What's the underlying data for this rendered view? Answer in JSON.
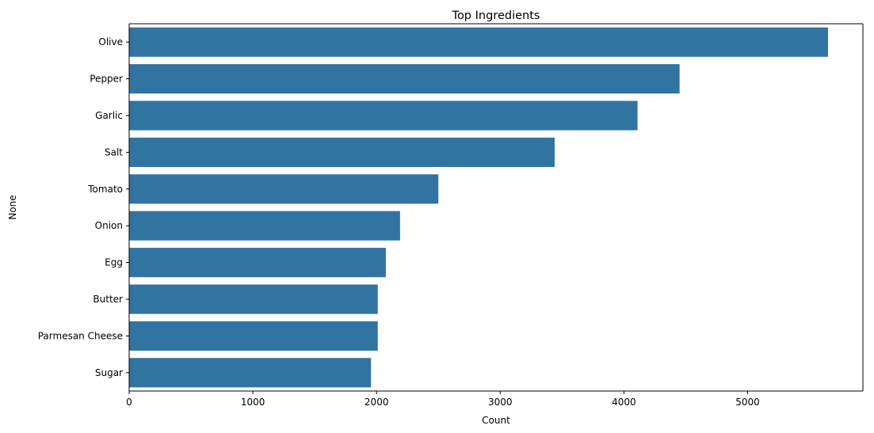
{
  "chart_data": {
    "type": "bar",
    "orientation": "horizontal",
    "title": "Top Ingredients",
    "xlabel": "Count",
    "ylabel": "None",
    "categories": [
      "Olive",
      "Pepper",
      "Garlic",
      "Salt",
      "Tomato",
      "Onion",
      "Egg",
      "Butter",
      "Parmesan Cheese",
      "Sugar"
    ],
    "values": [
      5650,
      4450,
      4110,
      3440,
      2500,
      2190,
      2075,
      2010,
      2010,
      1955
    ],
    "xlim": [
      0,
      5932
    ],
    "xticks": [
      0,
      1000,
      2000,
      3000,
      4000,
      5000
    ],
    "grid": false,
    "legend": "none",
    "bar_color": "#3274a1"
  }
}
